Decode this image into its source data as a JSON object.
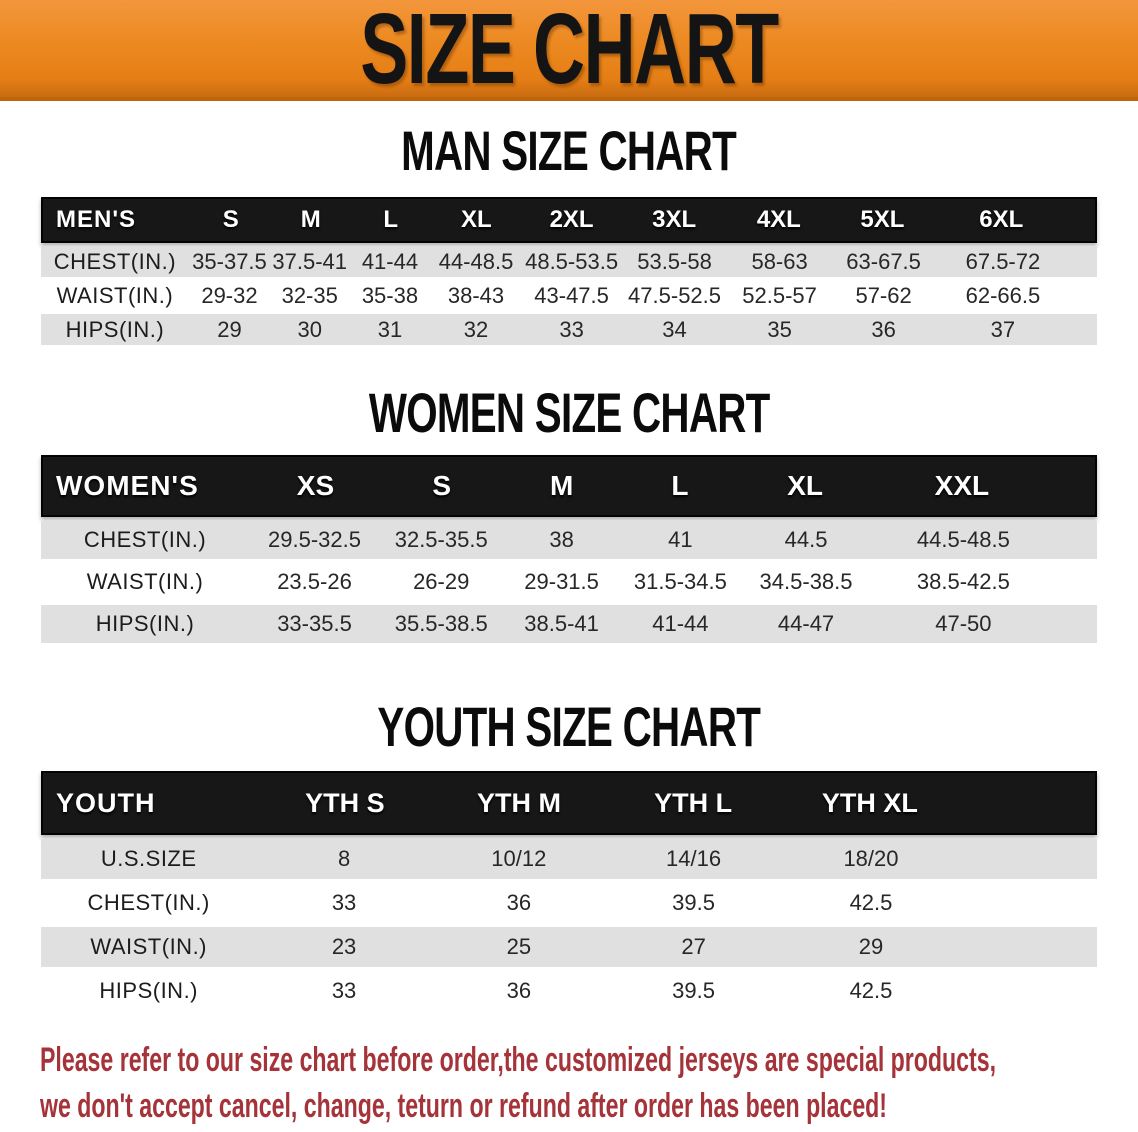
{
  "banner": {
    "title": "SIZE CHART",
    "background_color": "#EC8920"
  },
  "sections": [
    {
      "heading": "MAN SIZE CHART",
      "group_label": "MEN'S",
      "columns": [
        "S",
        "M",
        "L",
        "XL",
        "2XL",
        "3XL",
        "4XL",
        "5XL",
        "6XL"
      ],
      "rows": [
        {
          "label": "CHEST(IN.)",
          "values": [
            "35-37.5",
            "37.5-41",
            "41-44",
            "44-48.5",
            "48.5-53.5",
            "53.5-58",
            "58-63",
            "63-67.5",
            "67.5-72"
          ]
        },
        {
          "label": "WAIST(IN.)",
          "values": [
            "29-32",
            "32-35",
            "35-38",
            "38-43",
            "43-47.5",
            "47.5-52.5",
            "52.5-57",
            "57-62",
            "62-66.5"
          ]
        },
        {
          "label": "HIPS(IN.)",
          "values": [
            "29",
            "30",
            "31",
            "32",
            "33",
            "34",
            "35",
            "36",
            "37"
          ]
        }
      ]
    },
    {
      "heading": "WOMEN SIZE CHART",
      "group_label": "WOMEN'S",
      "columns": [
        "XS",
        "S",
        "M",
        "L",
        "XL",
        "XXL"
      ],
      "rows": [
        {
          "label": "CHEST(IN.)",
          "values": [
            "29.5-32.5",
            "32.5-35.5",
            "38",
            "41",
            "44.5",
            "44.5-48.5"
          ]
        },
        {
          "label": "WAIST(IN.)",
          "values": [
            "23.5-26",
            "26-29",
            "29-31.5",
            "31.5-34.5",
            "34.5-38.5",
            "38.5-42.5"
          ]
        },
        {
          "label": "HIPS(IN.)",
          "values": [
            "33-35.5",
            "35.5-38.5",
            "38.5-41",
            "41-44",
            "44-47",
            "47-50"
          ]
        }
      ]
    },
    {
      "heading": "YOUTH SIZE CHART",
      "group_label": "YOUTH",
      "columns": [
        "YTH S",
        "YTH M",
        "YTH L",
        "YTH XL"
      ],
      "rows": [
        {
          "label": "U.S.SIZE",
          "values": [
            "8",
            "10/12",
            "14/16",
            "18/20"
          ]
        },
        {
          "label": "CHEST(IN.)",
          "values": [
            "33",
            "36",
            "39.5",
            "42.5"
          ]
        },
        {
          "label": "WAIST(IN.)",
          "values": [
            "23",
            "25",
            "27",
            "29"
          ]
        },
        {
          "label": "HIPS(IN.)",
          "values": [
            "33",
            "36",
            "39.5",
            "42.5"
          ]
        }
      ]
    }
  ],
  "table_style_colors": {
    "header_bar": "#171717",
    "row_gray": "#E0E0E0",
    "row_white": "#FFFFFF"
  },
  "footer_note": {
    "line1": "Please refer to our size chart before order,the customized jerseys are special products,",
    "line2": "we don't accept cancel, change, teturn or refund after order has been placed!",
    "color": "#A5343A"
  }
}
